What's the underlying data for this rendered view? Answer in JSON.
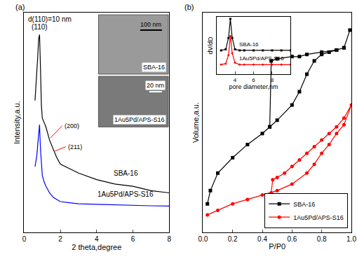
{
  "chart_data": [
    {
      "type": "line",
      "panel_label": "(a)",
      "x_label": "2 theta,degree",
      "y_label": "Intensity,a.u.",
      "xlim": [
        0,
        8
      ],
      "xticks": [
        0,
        2,
        4,
        6,
        8
      ],
      "ylim": [
        0,
        100
      ],
      "tick_labels": "x",
      "grid": false,
      "annotations": [
        "d(110)=10 nm",
        "(110)",
        "(200)",
        "(211)",
        "100 nm",
        "SBA-16",
        "20 nm",
        "1Au5Pd/APS-S16"
      ],
      "series": [
        {
          "name": "SBA-16",
          "color": "#000000",
          "line_style": "solid",
          "x": [
            0.6,
            0.7,
            0.75,
            0.8,
            0.85,
            0.9,
            0.95,
            1.0,
            1.1,
            1.2,
            1.4,
            1.6,
            1.8,
            2,
            2.5,
            3,
            4,
            5,
            6,
            7,
            8
          ],
          "values": [
            60,
            72,
            80,
            88,
            90,
            75,
            58,
            52,
            50,
            48,
            42,
            38,
            34,
            31,
            29,
            27,
            24,
            22,
            21,
            19,
            18
          ]
        },
        {
          "name": "1Au5Pd/APS-S16",
          "color": "#0000ff",
          "line_style": "solid",
          "x": [
            0.6,
            0.7,
            0.75,
            0.8,
            0.85,
            0.9,
            0.95,
            1.0,
            1.1,
            1.2,
            1.4,
            1.6,
            1.8,
            2,
            2.5,
            3,
            4,
            5,
            6,
            7,
            8
          ],
          "values": [
            30,
            35,
            40,
            46,
            49,
            38,
            30,
            26,
            23,
            21,
            18,
            16,
            15,
            14,
            13.5,
            13,
            12.8,
            12.5,
            12.3,
            12.1,
            12
          ]
        }
      ]
    },
    {
      "type": "line",
      "panel_label": "(b)",
      "x_label": "P/P0",
      "y_label": "Volume,a.u.",
      "xlim": [
        0,
        1
      ],
      "xticks": [
        {
          "value": 0,
          "label": "0.0"
        },
        0.2,
        0.4,
        0.6,
        0.8,
        {
          "value": 1,
          "label": "1.0"
        }
      ],
      "ylim": [
        0,
        100
      ],
      "tick_labels": "x",
      "grid": false,
      "legend": "bottom right",
      "series": [
        {
          "name": "SBA-16",
          "color": "#000000",
          "marker": "square",
          "line_style": "solid",
          "x": [
            0.03,
            0.05,
            0.1,
            0.2,
            0.3,
            0.4,
            0.45,
            0.5,
            0.6,
            0.65,
            0.7,
            0.75,
            0.8,
            0.85,
            0.9,
            0.95,
            0.99,
            0.95,
            0.9,
            0.8,
            0.7,
            0.65,
            0.6,
            0.5,
            0.46,
            0.45
          ],
          "values": [
            13,
            19,
            27,
            34,
            40,
            45,
            48,
            51,
            58,
            64,
            72,
            78,
            81,
            82,
            83,
            84,
            92,
            84,
            83,
            82,
            81,
            80,
            80,
            79,
            78,
            48
          ]
        },
        {
          "name": "1Au5Pd/APS-S16",
          "color": "#ff0000",
          "marker": "circle",
          "line_style": "solid",
          "x": [
            0.03,
            0.1,
            0.2,
            0.3,
            0.4,
            0.5,
            0.6,
            0.7,
            0.75,
            0.8,
            0.85,
            0.9,
            0.95,
            1.0,
            0.95,
            0.9,
            0.85,
            0.8,
            0.75,
            0.7,
            0.65,
            0.6,
            0.55,
            0.5,
            0.47,
            0.46
          ],
          "values": [
            8,
            10,
            13,
            15,
            17,
            19,
            22,
            27,
            31,
            36,
            40,
            45,
            49,
            58,
            52,
            48,
            45,
            42,
            39,
            36,
            33,
            30,
            27,
            25,
            24,
            18
          ]
        }
      ]
    },
    {
      "type": "line",
      "x_label": "pore diameter,nm",
      "y_label": "dV/dD",
      "xlim": [
        2,
        10
      ],
      "xticks": [
        4,
        6,
        8
      ],
      "ylim": [
        40,
        100
      ],
      "tick_labels": "x",
      "series": [
        {
          "name": "SBA-16",
          "color": "#000000",
          "marker": "square",
          "line_style": "solid",
          "x": [
            2.5,
            3,
            3.3,
            3.5,
            3.7,
            4,
            4.5,
            5,
            6,
            7,
            8,
            9,
            10
          ],
          "values": [
            65,
            66,
            78,
            98,
            78,
            66,
            65,
            65,
            65,
            65,
            65,
            65,
            65
          ]
        },
        {
          "name": "1Au5Pd/APS-S16",
          "color": "#ff0000",
          "marker": "circle",
          "line_style": "solid",
          "x": [
            2.5,
            3,
            3.3,
            3.5,
            3.7,
            4,
            4.5,
            5,
            6,
            7,
            8,
            9,
            10
          ],
          "values": [
            50,
            51,
            60,
            80,
            62,
            52,
            50,
            50,
            50,
            50,
            50,
            50,
            50
          ]
        }
      ]
    }
  ]
}
